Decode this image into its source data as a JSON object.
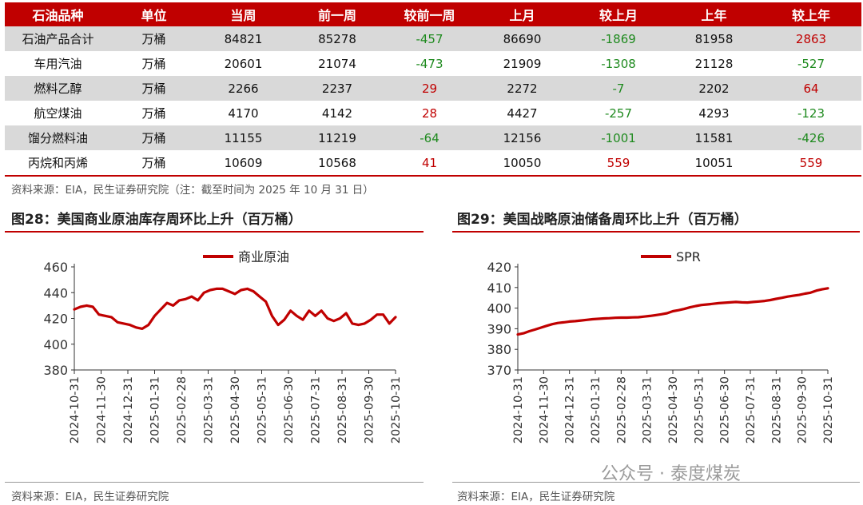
{
  "table": {
    "headers": [
      "石油品种",
      "单位",
      "当周",
      "前一周",
      "较前一周",
      "上月",
      "较上月",
      "上年",
      "较上年"
    ],
    "rows": [
      [
        "石油产品合计",
        "万桶",
        "84821",
        "85278",
        "-457",
        "86690",
        "-1869",
        "81958",
        "2863"
      ],
      [
        "车用汽油",
        "万桶",
        "20601",
        "21074",
        "-473",
        "21909",
        "-1308",
        "21128",
        "-527"
      ],
      [
        "燃料乙醇",
        "万桶",
        "2266",
        "2237",
        "29",
        "2272",
        "-7",
        "2202",
        "64"
      ],
      [
        "航空煤油",
        "万桶",
        "4170",
        "4142",
        "28",
        "4427",
        "-257",
        "4293",
        "-123"
      ],
      [
        "馏分燃料油",
        "万桶",
        "11155",
        "11219",
        "-64",
        "12156",
        "-1001",
        "11581",
        "-426"
      ],
      [
        "丙烷和丙烯",
        "万桶",
        "10609",
        "10568",
        "41",
        "10050",
        "559",
        "10051",
        "559"
      ]
    ],
    "source": "资料来源：EIA，民生证券研究院（注：截至时间为 2025 年 10 月 31 日）"
  },
  "figures": {
    "left_title": "图28：美国商业原油库存周环比上升（百万桶）",
    "right_title": "图29：美国战略原油储备周环比上升（百万桶）",
    "left_source": "资料来源：EIA，民生证券研究院",
    "right_source": "资料来源：EIA，民生证券研究院"
  },
  "watermark": "公众号 · 泰度煤炭",
  "colors": {
    "accent": "#c00000",
    "positive": "#c00000",
    "negative": "#1e8a1e",
    "shade": "#d9d9d9"
  },
  "chart_data": [
    {
      "type": "line",
      "title": "",
      "legend": "top-center",
      "series": [
        {
          "name": "商业原油",
          "values": [
            427,
            429,
            430,
            429,
            423,
            422,
            421,
            417,
            416,
            415,
            413,
            412,
            415,
            422,
            427,
            432,
            430,
            434,
            435,
            437,
            434,
            440,
            442,
            443,
            443,
            441,
            439,
            442,
            443,
            441,
            437,
            433,
            422,
            415,
            419,
            426,
            422,
            419,
            426,
            422,
            426,
            420,
            418,
            420,
            424,
            416,
            415,
            416,
            419,
            423,
            423,
            416,
            421
          ]
        }
      ],
      "x_ticks": [
        "2024-10-31",
        "2024-11-30",
        "2024-12-31",
        "2025-01-31",
        "2025-02-28",
        "2025-03-31",
        "2025-04-30",
        "2025-05-31",
        "2025-06-30",
        "2025-07-31",
        "2025-08-31",
        "2025-09-30",
        "2025-10-31"
      ],
      "ylim": [
        380,
        460
      ],
      "y_ticks": [
        380,
        400,
        420,
        440,
        460
      ]
    },
    {
      "type": "line",
      "title": "",
      "legend": "top-center",
      "series": [
        {
          "name": "SPR",
          "values": [
            387.2,
            387.8,
            388.8,
            389.6,
            390.5,
            391.4,
            392.2,
            392.8,
            393.1,
            393.5,
            393.7,
            394.0,
            394.3,
            394.6,
            394.8,
            395.0,
            395.1,
            395.3,
            395.4,
            395.4,
            395.5,
            395.6,
            395.9,
            396.2,
            396.6,
            397.0,
            397.5,
            398.5,
            399.0,
            399.6,
            400.4,
            401.0,
            401.5,
            401.8,
            402.1,
            402.4,
            402.6,
            402.8,
            403.0,
            402.8,
            402.7,
            403.0,
            403.2,
            403.5,
            403.9,
            404.5,
            405.0,
            405.6,
            406.0,
            406.4,
            407.0,
            407.5,
            408.5,
            409.1,
            409.6
          ]
        }
      ],
      "x_ticks": [
        "2024-10-31",
        "2024-11-30",
        "2024-12-31",
        "2025-01-31",
        "2025-02-28",
        "2025-03-31",
        "2025-04-30",
        "2025-05-31",
        "2025-06-30",
        "2025-07-31",
        "2025-08-31",
        "2025-09-30",
        "2025-10-31"
      ],
      "ylim": [
        370,
        420
      ],
      "y_ticks": [
        370,
        380,
        390,
        400,
        410,
        420
      ]
    }
  ]
}
